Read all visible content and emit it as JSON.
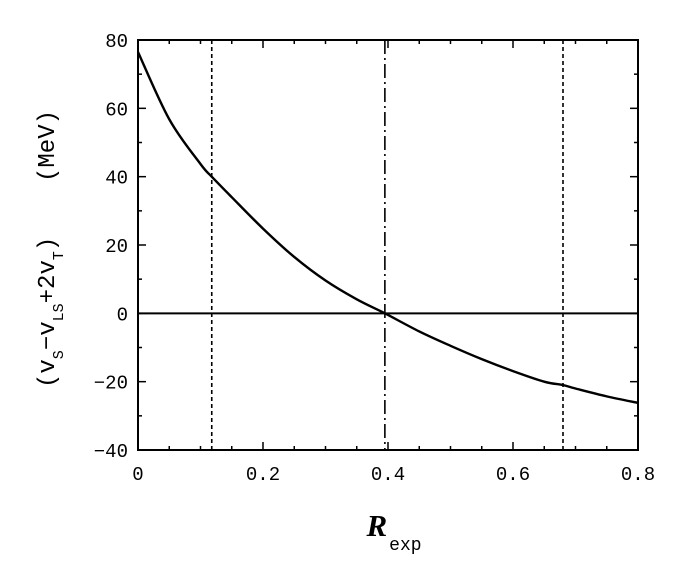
{
  "chart_data": {
    "type": "line",
    "x_axis": {
      "title_main": "R",
      "title_sub": "exp",
      "range": [
        0,
        0.8
      ],
      "ticks": [
        0,
        0.2,
        0.4,
        0.6,
        0.8
      ],
      "tick_labels": [
        "0",
        "0.2",
        "0.4",
        "0.6",
        "0.8"
      ],
      "minor_step": 0.05
    },
    "y_axis": {
      "title_parts": [
        {
          "text": "(v",
          "sub": false
        },
        {
          "text": "S",
          "sub": true
        },
        {
          "text": "−v",
          "sub": false
        },
        {
          "text": "LS",
          "sub": true
        },
        {
          "text": "+2v",
          "sub": false
        },
        {
          "text": "T",
          "sub": true
        },
        {
          "text": ")",
          "sub": false
        }
      ],
      "unit": "(MeV)",
      "range": [
        -40,
        80
      ],
      "ticks": [
        -40,
        -20,
        0,
        20,
        40,
        60,
        80
      ],
      "tick_labels": [
        "−40",
        "−20",
        "0",
        "20",
        "40",
        "60",
        "80"
      ],
      "minor_step": 10
    },
    "series": [
      {
        "x": [
          0,
          0.05,
          0.1,
          0.118,
          0.15,
          0.2,
          0.25,
          0.3,
          0.35,
          0.395,
          0.45,
          0.5,
          0.55,
          0.6,
          0.65,
          0.68,
          0.7,
          0.75,
          0.8
        ],
        "y": [
          76.5,
          56.8,
          43.7,
          40.0,
          34.0,
          24.8,
          16.5,
          9.6,
          4.1,
          0.0,
          -5.3,
          -9.5,
          -13.4,
          -16.9,
          -20.0,
          -21.0,
          -22.0,
          -24.3,
          -26.2
        ],
        "color": "#000000"
      }
    ],
    "reference_lines": [
      {
        "orientation": "horizontal",
        "value": 0,
        "style": "solid"
      },
      {
        "orientation": "vertical",
        "value": 0.118,
        "style": "dashed"
      },
      {
        "orientation": "vertical",
        "value": 0.395,
        "style": "dashdot"
      },
      {
        "orientation": "vertical",
        "value": 0.68,
        "style": "dashed"
      }
    ],
    "grid": false,
    "legend": "none"
  }
}
